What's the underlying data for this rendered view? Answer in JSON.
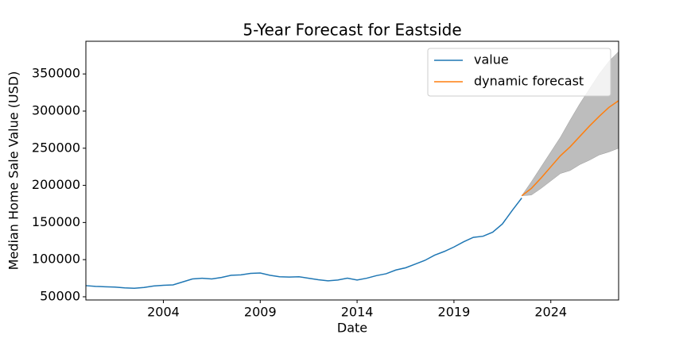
{
  "chart_data": {
    "type": "line",
    "title": "5-Year Forecast for Eastside",
    "x_label": "Date",
    "y_label": "Median Home Sale Value (USD)",
    "xlim": [
      2000,
      2027.5
    ],
    "xticks": [
      2004,
      2009,
      2014,
      2019,
      2024
    ],
    "ylim": [
      45700,
      394000
    ],
    "yticks": [
      50000,
      100000,
      150000,
      200000,
      250000,
      300000,
      350000
    ],
    "legend": "upper right",
    "grid": false,
    "series": [
      {
        "name": "value",
        "color": "#1f77b4",
        "x": [
          2000,
          2000.5,
          2001,
          2001.5,
          2002,
          2002.5,
          2003,
          2003.5,
          2004,
          2004.5,
          2005,
          2005.5,
          2006,
          2006.5,
          2007,
          2007.5,
          2008,
          2008.5,
          2009,
          2009.5,
          2010,
          2010.5,
          2011,
          2011.5,
          2012,
          2012.5,
          2013,
          2013.5,
          2014,
          2014.5,
          2015,
          2015.5,
          2016,
          2016.5,
          2017,
          2017.5,
          2018,
          2018.5,
          2019,
          2019.5,
          2020,
          2020.5,
          2021,
          2021.5,
          2022,
          2022.5
        ],
        "values": [
          65000,
          64000,
          63500,
          63000,
          62000,
          61500,
          62500,
          64500,
          65500,
          66000,
          70000,
          74000,
          75000,
          74000,
          76000,
          79000,
          79500,
          81500,
          82000,
          79000,
          77000,
          76500,
          77000,
          75000,
          73000,
          71500,
          72500,
          75000,
          72500,
          75000,
          78500,
          81000,
          86000,
          89000,
          94000,
          99000,
          106000,
          111000,
          117000,
          124000,
          130000,
          131500,
          137000,
          148000,
          166000,
          183000
        ]
      },
      {
        "name": "dynamic forecast",
        "color": "#ff7f0e",
        "x": [
          2022.5,
          2023,
          2023.5,
          2024,
          2024.5,
          2025,
          2025.5,
          2026,
          2026.5,
          2027,
          2027.5
        ],
        "values": [
          186000,
          196000,
          210000,
          225000,
          240000,
          252000,
          266000,
          280000,
          293000,
          305000,
          314000
        ]
      }
    ],
    "band": {
      "color": "#bdbdbd",
      "x": [
        2022.5,
        2023,
        2023.5,
        2024,
        2024.5,
        2025,
        2025.5,
        2026,
        2026.5,
        2027,
        2027.5
      ],
      "lower": [
        186000,
        187000,
        196000,
        206000,
        216000,
        220000,
        228000,
        234000,
        241000,
        245000,
        250000
      ],
      "upper": [
        186000,
        205000,
        225000,
        245000,
        265000,
        288000,
        310000,
        330000,
        350000,
        367000,
        380000
      ]
    }
  }
}
